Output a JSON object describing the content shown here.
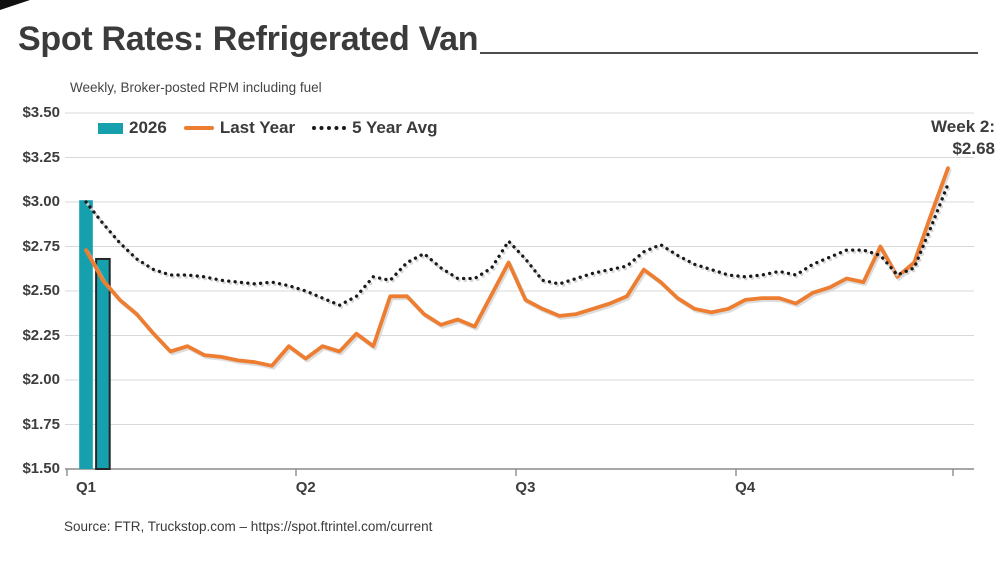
{
  "footer": {
    "source": "Source: FTR, Truckstop.com – https://spot.ftrintel.com/current"
  },
  "colors": {
    "grid": "#D9D9D9",
    "axis": "#8C8C8C",
    "text": "#3B3B3B",
    "bar_highlight_border": "#262626",
    "line_shadow": "#D2D2D2"
  },
  "chart_data": {
    "type": "combo: bar + line",
    "title": "Spot Rates: Refrigerated Van",
    "subtitle": "Weekly, Broker-posted RPM including fuel",
    "xlabel": "",
    "ylabel": "",
    "x_unit": "week of year (52 weekly points)",
    "ylim": [
      1.5,
      3.5
    ],
    "grid": "horizontal only",
    "legend_position": "top-left inside plot",
    "y_ticks": [
      {
        "label": "$1.50",
        "value": 1.5
      },
      {
        "label": "$1.75",
        "value": 1.75
      },
      {
        "label": "$2.00",
        "value": 2.0
      },
      {
        "label": "$2.25",
        "value": 2.25
      },
      {
        "label": "$2.50",
        "value": 2.5
      },
      {
        "label": "$2.75",
        "value": 2.75
      },
      {
        "label": "$3.00",
        "value": 3.0
      },
      {
        "label": "$3.25",
        "value": 3.25
      },
      {
        "label": "$3.50",
        "value": 3.5
      }
    ],
    "x_ticks": [
      {
        "label": "Q1",
        "week": 1
      },
      {
        "label": "Q2",
        "week": 14
      },
      {
        "label": "Q3",
        "week": 27
      },
      {
        "label": "Q4",
        "week": 40
      }
    ],
    "annotation": {
      "line1": "Week 2:",
      "line2": "$2.68",
      "refers_to": "2026 week 2 bar"
    },
    "series": [
      {
        "name": "2026",
        "type": "bar",
        "color": "#169FAD",
        "points": [
          {
            "week": 1,
            "value": 3.01
          },
          {
            "week": 2,
            "value": 2.68
          }
        ],
        "highlight_week": 2
      },
      {
        "name": "Last Year",
        "type": "line",
        "color": "#ED7D31",
        "values": [
          2.73,
          2.56,
          2.45,
          2.37,
          2.26,
          2.16,
          2.19,
          2.14,
          2.13,
          2.11,
          2.1,
          2.08,
          2.19,
          2.12,
          2.19,
          2.16,
          2.26,
          2.19,
          2.47,
          2.47,
          2.37,
          2.31,
          2.34,
          2.3,
          2.48,
          2.66,
          2.45,
          2.4,
          2.36,
          2.37,
          2.4,
          2.43,
          2.47,
          2.62,
          2.55,
          2.46,
          2.4,
          2.38,
          2.4,
          2.45,
          2.46,
          2.46,
          2.43,
          2.49,
          2.52,
          2.57,
          2.55,
          2.75,
          2.58,
          2.66,
          2.93,
          3.19
        ]
      },
      {
        "name": "5 Year Avg",
        "type": "dotted-line",
        "color": "#1A1A1A",
        "values": [
          3.0,
          2.88,
          2.77,
          2.68,
          2.62,
          2.59,
          2.59,
          2.58,
          2.56,
          2.55,
          2.54,
          2.55,
          2.53,
          2.5,
          2.46,
          2.42,
          2.47,
          2.58,
          2.56,
          2.66,
          2.71,
          2.63,
          2.57,
          2.57,
          2.63,
          2.78,
          2.68,
          2.56,
          2.54,
          2.57,
          2.6,
          2.62,
          2.64,
          2.72,
          2.76,
          2.7,
          2.65,
          2.62,
          2.59,
          2.58,
          2.59,
          2.61,
          2.59,
          2.65,
          2.69,
          2.73,
          2.73,
          2.7,
          2.59,
          2.63,
          2.86,
          3.1
        ]
      }
    ]
  }
}
